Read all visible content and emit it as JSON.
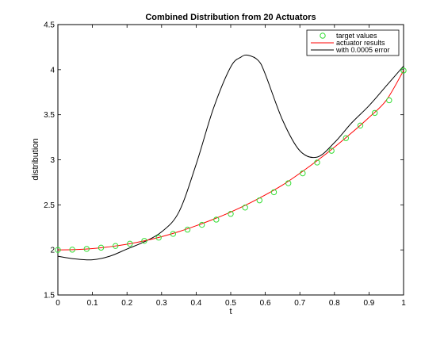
{
  "chart_data": {
    "type": "line",
    "title": "Combined Distribution from 20 Actuators",
    "xlabel": "t",
    "ylabel": "distribution",
    "xlim": [
      0,
      1
    ],
    "ylim": [
      1.5,
      4.5
    ],
    "x_ticks": [
      0,
      0.1,
      0.2,
      0.3,
      0.4,
      0.5,
      0.6,
      0.7,
      0.8,
      0.9,
      1
    ],
    "x_tick_labels": [
      "0",
      "0.1",
      "0.2",
      "0.3",
      "0.4",
      "0.5",
      "0.6",
      "0.7",
      "0.8",
      "0.9",
      "1"
    ],
    "y_ticks": [
      1.5,
      2,
      2.5,
      3,
      3.5,
      4,
      4.5
    ],
    "y_tick_labels": [
      "1.5",
      "2",
      "2.5",
      "3",
      "3.5",
      "4",
      "4.5"
    ],
    "grid": false,
    "legend_position": "top-right",
    "series": [
      {
        "name": "target values",
        "style": "markers",
        "marker": "circle",
        "color": "#33dd33",
        "x": [
          0,
          0.0417,
          0.0833,
          0.125,
          0.1667,
          0.2083,
          0.25,
          0.2917,
          0.3333,
          0.375,
          0.4167,
          0.4583,
          0.5,
          0.5417,
          0.5833,
          0.625,
          0.6667,
          0.7083,
          0.75,
          0.7917,
          0.8333,
          0.875,
          0.9167,
          0.9583,
          1
        ],
        "y": [
          2.0,
          2.003,
          2.011,
          2.025,
          2.044,
          2.069,
          2.1,
          2.136,
          2.178,
          2.225,
          2.278,
          2.336,
          2.4,
          2.47,
          2.55,
          2.64,
          2.74,
          2.85,
          2.97,
          3.1,
          3.24,
          3.38,
          3.52,
          3.66,
          3.99
        ]
      },
      {
        "name": "actuator results",
        "style": "line",
        "color": "#ff0000",
        "x": [
          0,
          0.05,
          0.1,
          0.15,
          0.2,
          0.25,
          0.3,
          0.35,
          0.4,
          0.45,
          0.5,
          0.55,
          0.6,
          0.65,
          0.7,
          0.75,
          0.8,
          0.85,
          0.9,
          0.95,
          1
        ],
        "y": [
          2.0,
          2.004,
          2.015,
          2.035,
          2.063,
          2.1,
          2.147,
          2.203,
          2.268,
          2.34,
          2.42,
          2.51,
          2.61,
          2.72,
          2.85,
          2.99,
          3.14,
          3.3,
          3.47,
          3.66,
          3.99
        ]
      },
      {
        "name": "with 0.0005 error",
        "style": "line",
        "color": "#000000",
        "x": [
          0,
          0.05,
          0.1,
          0.15,
          0.2,
          0.25,
          0.3,
          0.35,
          0.4,
          0.45,
          0.5,
          0.53,
          0.55,
          0.58,
          0.6,
          0.65,
          0.7,
          0.75,
          0.8,
          0.85,
          0.9,
          0.95,
          1
        ],
        "y": [
          1.93,
          1.9,
          1.89,
          1.93,
          2.01,
          2.09,
          2.2,
          2.42,
          2.95,
          3.57,
          4.03,
          4.14,
          4.16,
          4.1,
          3.95,
          3.44,
          3.1,
          3.03,
          3.19,
          3.41,
          3.6,
          3.82,
          4.04
        ]
      }
    ]
  }
}
